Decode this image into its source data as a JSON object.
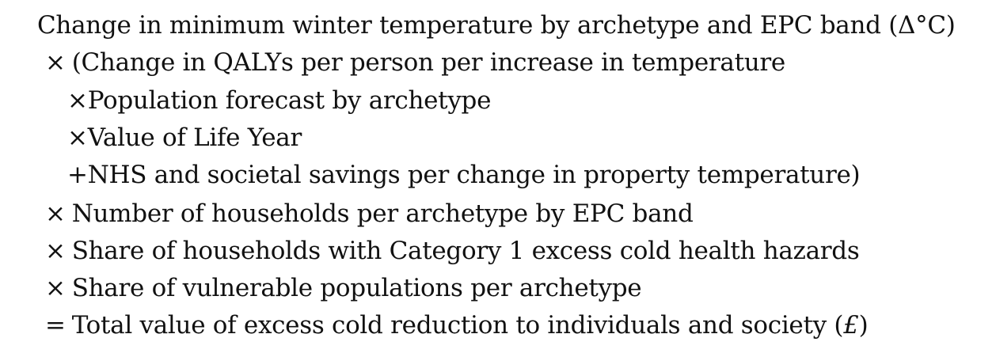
{
  "formula": {
    "line0": {
      "text": "Change in minimum winter temperature by archetype and EPC band (",
      "unit": "Δ°C",
      "close": ")"
    },
    "line1": {
      "op": "×",
      "text": "(Change in QALYs per person per increase in temperature"
    },
    "line2": {
      "op": "×",
      "text": "Population forecast by archetype"
    },
    "line3": {
      "op": "×",
      "text": "Value of Life Year"
    },
    "line4": {
      "op": "+",
      "text": "NHS and societal savings per change in property temperature)"
    },
    "line5": {
      "op": "×",
      "text": "Number of households per archetype by EPC band"
    },
    "line6": {
      "op": "×",
      "text": "Share of households with Category 1 excess cold health hazards"
    },
    "line7": {
      "op": "×",
      "text": "Share of vulnerable populations per archetype"
    },
    "line8": {
      "op": "=",
      "text": "Total value of excess cold reduction to individuals and society (",
      "unit": "£",
      "close": ")"
    }
  }
}
